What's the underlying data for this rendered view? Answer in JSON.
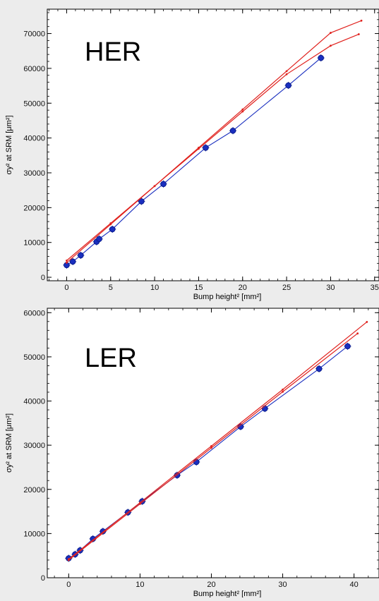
{
  "chart_data": [
    {
      "type": "scatter",
      "panel_label": "HER",
      "xlabel": "Bump height² [mm²]",
      "ylabel": "σy² at SRM [μm²]",
      "xlim": [
        -2.2,
        35.5
      ],
      "ylim": [
        -1000,
        77000
      ],
      "xticks": [
        0,
        5,
        10,
        15,
        20,
        25,
        30,
        35
      ],
      "yticks": [
        0,
        10000,
        20000,
        30000,
        40000,
        50000,
        60000,
        70000
      ],
      "grid": false,
      "legend": "none",
      "series": [
        {
          "color": "#1a2fbf",
          "marker": "circle",
          "x": [
            0,
            0.7,
            1.6,
            3.4,
            3.7,
            5.2,
            8.5,
            11.0,
            15.8,
            18.9,
            25.2,
            28.9
          ],
          "y": [
            3500,
            4500,
            6300,
            10200,
            11000,
            13800,
            21800,
            26800,
            37200,
            42100,
            55100,
            63000
          ]
        },
        {
          "color": "#e0211d",
          "marker": "dot",
          "x": [
            0,
            5,
            10,
            15,
            20,
            25,
            30,
            33.5
          ],
          "y": [
            4200,
            15200,
            26200,
            37200,
            48200,
            59200,
            70200,
            73700
          ]
        },
        {
          "color": "#e0211d",
          "marker": "dot",
          "x": [
            0,
            5,
            10,
            15,
            20,
            25,
            30,
            33.2
          ],
          "y": [
            4800,
            15500,
            26200,
            36900,
            47600,
            58300,
            66500,
            69800
          ]
        }
      ]
    },
    {
      "type": "scatter",
      "panel_label": "LER",
      "xlabel": "Bump height² [mm²]",
      "ylabel": "σy² at SRM [μm²]",
      "xlim": [
        -3,
        43.5
      ],
      "ylim": [
        0,
        61000
      ],
      "xticks": [
        0,
        10,
        20,
        30,
        40
      ],
      "yticks": [
        0,
        10000,
        20000,
        30000,
        40000,
        50000,
        60000
      ],
      "grid": false,
      "legend": "none",
      "series": [
        {
          "color": "#1a2fbf",
          "marker": "circle",
          "x": [
            0,
            0.9,
            1.6,
            3.4,
            4.8,
            8.3,
            10.3,
            15.2,
            17.9,
            24.1,
            27.5,
            35.1,
            39.1
          ],
          "y": [
            4400,
            5300,
            6200,
            8800,
            10500,
            14800,
            17300,
            23200,
            26200,
            34200,
            38300,
            47300,
            52400
          ]
        },
        {
          "color": "#e0211d",
          "marker": "dot",
          "x": [
            0,
            10,
            20,
            30,
            41.8
          ],
          "y": [
            4200,
            17000,
            29800,
            42600,
            57900
          ]
        },
        {
          "color": "#e0211d",
          "marker": "dot",
          "x": [
            0,
            10,
            20,
            30,
            40.5
          ],
          "y": [
            4000,
            16700,
            29400,
            42100,
            55300
          ]
        }
      ]
    }
  ]
}
